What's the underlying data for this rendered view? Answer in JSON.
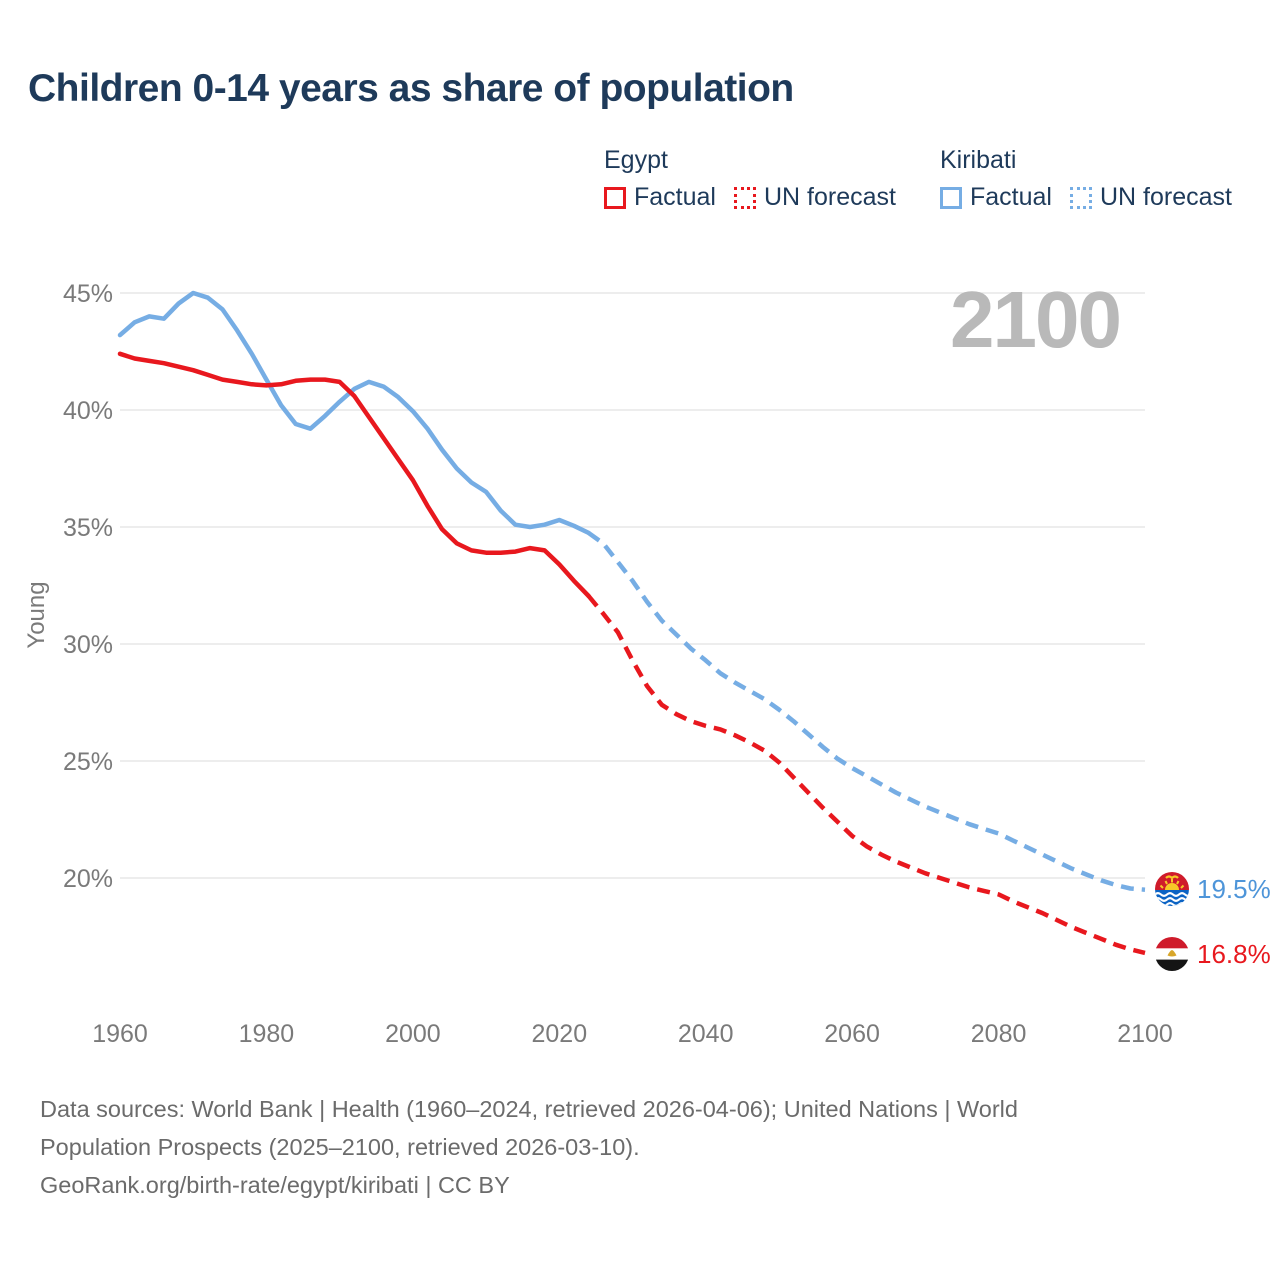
{
  "title": "Children 0-14 years as share of population",
  "watermark": "2100",
  "colors": {
    "egypt": "#e8181e",
    "kiribati": "#76ade4",
    "kiribati_value_label": "#4e95d9",
    "egypt_value_label": "#e8181e",
    "heading_text": "#1e3a5a",
    "axis_text": "#7a7a7a",
    "gridline": "#e7e7e7",
    "watermark": "#b9b9b9",
    "footer_text": "#6b6b6b"
  },
  "legend": {
    "position": "top-right",
    "groups": [
      {
        "name": "Egypt",
        "color": "#e8181e",
        "items": [
          {
            "label": "Factual",
            "style": "solid"
          },
          {
            "label": "UN forecast",
            "style": "dashed"
          }
        ]
      },
      {
        "name": "Kiribati",
        "color": "#76ade4",
        "items": [
          {
            "label": "Factual",
            "style": "solid"
          },
          {
            "label": "UN forecast",
            "style": "dashed"
          }
        ]
      }
    ]
  },
  "chart_data": {
    "type": "line",
    "title": "Children 0-14 years as share of population",
    "xlabel": "",
    "ylabel": "Young",
    "grid": "horizontal",
    "x_range": [
      1960,
      2100
    ],
    "ylim": [
      15,
      46
    ],
    "y_axis": {
      "unit": "%",
      "ticks": [
        {
          "value": 45,
          "label": "45%"
        },
        {
          "value": 40,
          "label": "40%"
        },
        {
          "value": 35,
          "label": "35%"
        },
        {
          "value": 30,
          "label": "30%"
        },
        {
          "value": 25,
          "label": "25%"
        },
        {
          "value": 20,
          "label": "20%"
        }
      ]
    },
    "x_axis": {
      "ticks": [
        {
          "value": 1960,
          "label": "1960"
        },
        {
          "value": 1980,
          "label": "1980"
        },
        {
          "value": 2000,
          "label": "2000"
        },
        {
          "value": 2020,
          "label": "2020"
        },
        {
          "value": 2040,
          "label": "2040"
        },
        {
          "value": 2060,
          "label": "2060"
        },
        {
          "value": 2080,
          "label": "2080"
        },
        {
          "value": 2100,
          "label": "2100"
        }
      ]
    },
    "series": [
      {
        "name": "Kiribati Factual",
        "style": "solid",
        "color": "#76ade4",
        "year_start": 1960,
        "year_step": 2,
        "values": [
          43.2,
          43.75,
          44.0,
          43.9,
          44.55,
          45.0,
          44.8,
          44.3,
          43.4,
          42.4,
          41.3,
          40.2,
          39.4,
          39.2,
          39.75,
          40.35,
          40.9,
          41.2,
          41.0,
          40.55,
          39.95,
          39.2,
          38.3,
          37.5,
          36.9,
          36.5,
          35.7,
          35.1,
          35.0,
          35.1,
          35.3,
          35.05,
          34.75
        ]
      },
      {
        "name": "Kiribati UN forecast",
        "style": "dashed",
        "color": "#76ade4",
        "year_start": 2024,
        "year_step": 2,
        "values": [
          34.75,
          34.3,
          33.5,
          32.7,
          31.8,
          31.0,
          30.4,
          29.8,
          29.3,
          28.75,
          28.35,
          28.0,
          27.65,
          27.2,
          26.7,
          26.15,
          25.6,
          25.1,
          24.7,
          24.35,
          24.0,
          23.65,
          23.35,
          23.05,
          22.8,
          22.55,
          22.3,
          22.1,
          21.9,
          21.6,
          21.3,
          21.0,
          20.7,
          20.4,
          20.15,
          19.9,
          19.7,
          19.55,
          19.5
        ]
      },
      {
        "name": "Egypt Factual",
        "style": "solid",
        "color": "#e8181e",
        "year_start": 1960,
        "year_step": 2,
        "values": [
          42.4,
          42.2,
          42.1,
          42.0,
          41.85,
          41.7,
          41.5,
          41.3,
          41.2,
          41.1,
          41.05,
          41.1,
          41.25,
          41.3,
          41.3,
          41.2,
          40.6,
          39.7,
          38.8,
          37.9,
          37.0,
          35.9,
          34.9,
          34.3,
          34.0,
          33.9,
          33.9,
          33.95,
          34.1,
          34.0,
          33.4,
          32.7,
          32.05
        ]
      },
      {
        "name": "Egypt UN forecast",
        "style": "dashed",
        "color": "#e8181e",
        "year_start": 2024,
        "year_step": 2,
        "values": [
          32.05,
          31.3,
          30.5,
          29.3,
          28.2,
          27.4,
          27.0,
          26.7,
          26.5,
          26.35,
          26.1,
          25.8,
          25.45,
          24.95,
          24.3,
          23.65,
          23.0,
          22.4,
          21.8,
          21.35,
          21.0,
          20.7,
          20.45,
          20.2,
          20.0,
          19.8,
          19.6,
          19.45,
          19.3,
          19.0,
          18.75,
          18.5,
          18.2,
          17.9,
          17.65,
          17.4,
          17.15,
          16.95,
          16.8
        ]
      }
    ],
    "end_labels": [
      {
        "country": "Kiribati",
        "value": "19.5%",
        "color": "#4e95d9"
      },
      {
        "country": "Egypt",
        "value": "16.8%",
        "color": "#e8181e"
      }
    ]
  },
  "footer": {
    "lines": [
      "Data sources: World Bank | Health (1960–2024, retrieved 2026-04-06); United Nations | World",
      "Population Prospects (2025–2100, retrieved 2026-03-10).",
      "GeoRank.org/birth-rate/egypt/kiribati | CC BY"
    ]
  }
}
